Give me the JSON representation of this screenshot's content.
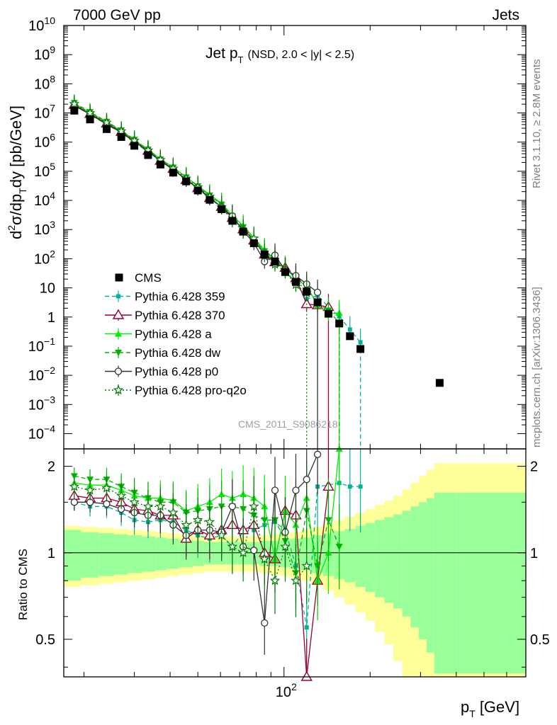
{
  "header": {
    "left": "7000 GeV pp",
    "right": "Jets"
  },
  "side_labels": {
    "rivet": "Rivet 3.1.10, ≥ 2.8M events",
    "mcplots": "mcplots.cern.ch [arXiv:1306.3436]"
  },
  "watermark": "CMS_2011_S9086218",
  "title": {
    "main": "Jet p",
    "sub": "T",
    "detail": "(NSD, 2.0 < |y| < 2.5)"
  },
  "axes": {
    "main_ylabel": "d²σ/dp_T dy [pb/GeV]",
    "ratio_ylabel": "Ratio to CMS",
    "xlabel_main": "p",
    "xlabel_sub": "T",
    "xlabel_unit": "[GeV]",
    "x_tick_label": "10",
    "x_tick_sup": "2",
    "ratio_ticks": [
      "2",
      "1",
      "0.5"
    ],
    "main_ticks_plain": [
      "10",
      "1"
    ],
    "main_ticks_pow": [
      {
        "base": "10",
        "exp": "10",
        "v": 10
      },
      {
        "base": "10",
        "exp": "9",
        "v": 9
      },
      {
        "base": "10",
        "exp": "8",
        "v": 8
      },
      {
        "base": "10",
        "exp": "7",
        "v": 7
      },
      {
        "base": "10",
        "exp": "6",
        "v": 6
      },
      {
        "base": "10",
        "exp": "5",
        "v": 5
      },
      {
        "base": "10",
        "exp": "4",
        "v": 4
      },
      {
        "base": "10",
        "exp": "3",
        "v": 3
      },
      {
        "base": "10",
        "exp": "2",
        "v": 2
      },
      {
        "base": "10",
        "exp": "−1",
        "v": -1
      },
      {
        "base": "10",
        "exp": "−2",
        "v": -2
      },
      {
        "base": "10",
        "exp": "−3",
        "v": -3
      },
      {
        "base": "10",
        "exp": "−4",
        "v": -4
      }
    ]
  },
  "chart_data": {
    "type": "scatter",
    "x_scale": "log",
    "x_range": [
      17,
      700
    ],
    "y_scale": "log",
    "y_range": [
      3e-05,
      10000000000.0
    ],
    "ratio_range": [
      0.37,
      2.3
    ],
    "x": [
      18.5,
      21,
      24,
      27,
      30,
      33.5,
      37,
      41,
      45.5,
      50,
      55,
      60.5,
      66,
      72,
      78.5,
      85.5,
      93,
      101,
      110,
      120,
      131,
      143,
      156,
      170,
      185,
      200,
      216,
      233,
      250,
      268,
      286,
      305,
      325,
      345,
      600
    ],
    "cms": [
      12000000.0,
      6000000.0,
      2800000.0,
      1500000.0,
      750000.0,
      360000.0,
      170000.0,
      90000.0,
      45000.0,
      22000.0,
      10500.0,
      5000.0,
      2000.0,
      850.0,
      340.0,
      140.0,
      80,
      35,
      16,
      7.5,
      3.2,
      1.3,
      0.6,
      0.22,
      0.08,
      0.0055
    ],
    "cms_x": [
      18.5,
      21,
      24,
      27,
      30,
      33.5,
      37,
      41,
      45.5,
      50,
      55,
      60.5,
      66,
      72,
      78.5,
      85.5,
      93,
      101,
      110,
      120,
      131,
      143,
      156,
      170,
      185,
      350
    ],
    "band_edges": [
      17,
      19.5,
      22.5,
      25.5,
      28.5,
      32,
      35.5,
      39,
      43,
      48,
      52.5,
      57.5,
      63,
      69,
      75.5,
      82,
      89,
      97,
      105,
      114.5,
      125,
      137,
      149.5,
      163,
      177.5,
      192.5,
      208,
      224.5,
      241,
      259,
      277,
      296,
      315,
      335,
      400,
      700
    ],
    "band_yellow": [
      0.24,
      0.23,
      0.22,
      0.21,
      0.2,
      0.19,
      0.18,
      0.17,
      0.16,
      0.15,
      0.14,
      0.14,
      0.14,
      0.14,
      0.14,
      0.15,
      0.16,
      0.17,
      0.18,
      0.2,
      0.23,
      0.26,
      0.3,
      0.34,
      0.38,
      0.42,
      0.47,
      0.52,
      0.58,
      0.66,
      0.75,
      0.85,
      0.95,
      1.05,
      1.05
    ],
    "band_green": [
      0.2,
      0.18,
      0.17,
      0.16,
      0.15,
      0.14,
      0.13,
      0.12,
      0.11,
      0.1,
      0.09,
      0.09,
      0.09,
      0.09,
      0.09,
      0.1,
      0.1,
      0.11,
      0.12,
      0.13,
      0.15,
      0.17,
      0.19,
      0.21,
      0.24,
      0.27,
      0.3,
      0.33,
      0.36,
      0.4,
      0.45,
      0.5,
      0.55,
      0.62,
      0.62
    ],
    "series": [
      {
        "name": "CMS",
        "color": "#000000",
        "marker": "square"
      },
      {
        "name": "Pythia 6.428 359",
        "color": "#00b399",
        "marker": "smallsquare",
        "dash": "6,4",
        "ratio": [
          1.5,
          1.45,
          1.45,
          1.38,
          1.3,
          1.28,
          1.3,
          1.28,
          1.2,
          1.15,
          1.12,
          1.15,
          1.05,
          1.18,
          1.2,
          1.25,
          1.28,
          1.2,
          0.9,
          0.55,
          1.7,
          1.72,
          1.75,
          1.7,
          1.7
        ]
      },
      {
        "name": "Pythia 6.428 370",
        "color": "#990033",
        "marker": "opentriangle",
        "dash": "",
        "ratio": [
          1.58,
          1.55,
          1.55,
          1.5,
          1.42,
          1.4,
          1.35,
          1.35,
          1.12,
          1.2,
          1.15,
          1.2,
          1.25,
          1.2,
          1.25,
          1.0,
          0.95,
          1.4,
          1.35,
          0.37,
          0.8,
          1.7
        ]
      },
      {
        "name": "Pythia 6.428 a",
        "color": "#00ee00",
        "marker": "triangle",
        "dash": "",
        "ratio": [
          1.75,
          1.72,
          1.72,
          1.65,
          1.58,
          1.55,
          1.55,
          1.52,
          1.4,
          1.45,
          1.5,
          1.6,
          1.55,
          1.6,
          1.55,
          1.45,
          0.95,
          1.4,
          1.25,
          1.55,
          0.8,
          1.0,
          2.3
        ]
      },
      {
        "name": "Pythia 6.428 dw",
        "color": "#00b300",
        "marker": "invtriangle",
        "dash": "6,4",
        "ratio": [
          1.85,
          1.8,
          1.8,
          1.7,
          1.62,
          1.55,
          1.5,
          1.5,
          1.38,
          1.4,
          1.42,
          1.45,
          1.45,
          1.42,
          1.35,
          1.3,
          1.3,
          1.1,
          0.85,
          1.4,
          0.9,
          1.3,
          1.05
        ]
      },
      {
        "name": "Pythia 6.428 p0",
        "color": "#333333",
        "marker": "opencircle",
        "dash": "",
        "ratio": [
          1.5,
          1.5,
          1.48,
          1.42,
          1.38,
          1.35,
          1.35,
          1.25,
          1.15,
          1.2,
          1.2,
          1.18,
          1.45,
          1.05,
          1.02,
          0.57,
          1.65,
          1.18,
          1.65,
          1.8,
          2.2
        ]
      },
      {
        "name": "Pythia 6.428 pro-q2o",
        "color": "#007a00",
        "marker": "star",
        "dash": "2,3",
        "ratio": [
          1.7,
          1.65,
          1.68,
          1.58,
          1.5,
          1.45,
          1.45,
          1.38,
          1.25,
          1.3,
          1.28,
          1.15,
          1.05,
          1.0,
          1.45,
          0.95,
          0.8,
          1.05,
          0.8,
          0.9
        ]
      }
    ]
  }
}
